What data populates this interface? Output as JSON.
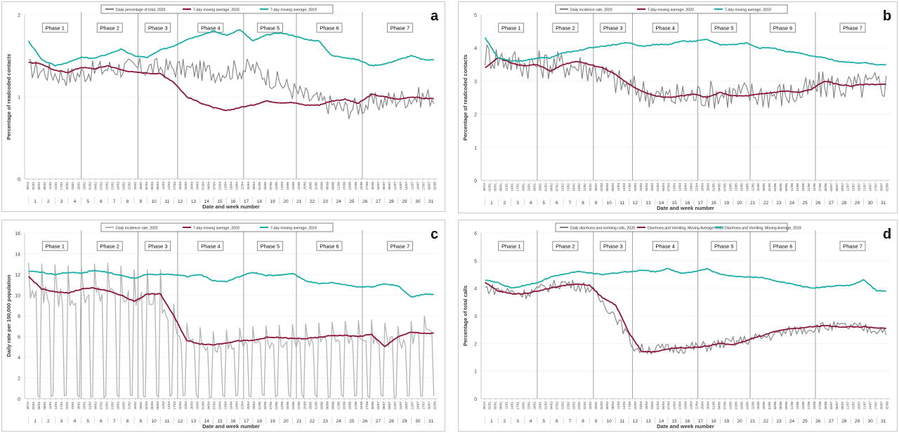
{
  "phases": [
    "Phase 1",
    "Phase 2",
    "Phase 3",
    "Phase 4",
    "Phase 5",
    "Phase 6",
    "Phase 7"
  ],
  "phase_week_bounds": [
    1,
    5,
    9.3,
    12.3,
    17.3,
    21.3,
    26.3,
    32
  ],
  "xlabel": "Date and week number",
  "week_numbers": [
    "1",
    "2",
    "3",
    "4",
    "5",
    "6",
    "7",
    "8",
    "9",
    "10",
    "11",
    "12",
    "13",
    "14",
    "15",
    "16",
    "17",
    "18",
    "19",
    "20",
    "21",
    "22",
    "23",
    "24",
    "25",
    "26",
    "27",
    "28",
    "29",
    "30",
    "31"
  ],
  "date_ticks": [
    "30/12",
    "02/01",
    "05/01",
    "08/01",
    "11/01",
    "14/01",
    "17/01",
    "20/01",
    "23/01",
    "26/01",
    "29/01",
    "01/02",
    "04/02",
    "07/02",
    "10/02",
    "13/02",
    "16/02",
    "19/02",
    "22/02",
    "25/02",
    "28/02",
    "02/03",
    "05/03",
    "08/03",
    "11/03",
    "14/03",
    "17/03",
    "20/03",
    "23/03",
    "26/03",
    "29/03",
    "01/04",
    "04/04",
    "07/04",
    "10/04",
    "13/04",
    "16/04",
    "19/04",
    "22/04",
    "25/04",
    "28/04",
    "01/05",
    "04/05",
    "07/05",
    "10/05",
    "13/05",
    "16/05",
    "19/05",
    "22/05",
    "25/05",
    "28/05",
    "31/05",
    "03/06",
    "06/06",
    "09/06",
    "12/06",
    "15/06",
    "18/06",
    "21/06",
    "24/06",
    "27/06",
    "30/06",
    "03/07",
    "06/07",
    "09/07",
    "12/07",
    "15/07",
    "18/07",
    "21/07",
    "24/07",
    "27/07",
    "30/07",
    "02/08"
  ],
  "colors": {
    "daily_a": "#808080",
    "daily_c": "#b4b4b4",
    "ma2020": "#8b1538",
    "ma2019": "#1aaea6"
  },
  "chart_data": [
    {
      "panel": "a",
      "type": "line",
      "ylabel": "Percentage of readcoded contacts",
      "ylim": [
        0,
        2
      ],
      "yticks": [
        "0",
        "1",
        "2"
      ],
      "legend": [
        "Daily percentage of total, 2020",
        "7-day moving average, 2020",
        "7-day moving average, 2019"
      ],
      "series": [
        {
          "name": "Daily percentage of total, 2020",
          "kind": "daily",
          "x": [
            1,
            4,
            7,
            9,
            12,
            15,
            18,
            22,
            25,
            27,
            29,
            31
          ],
          "y": [
            1.35,
            1.25,
            1.35,
            1.35,
            1.35,
            1.3,
            1.35,
            1.0,
            0.85,
            0.92,
            0.98,
            1.0
          ],
          "noise": 0.13
        },
        {
          "name": "7-day moving average, 2020",
          "kind": "ma2020",
          "x": [
            1,
            2,
            3,
            4,
            5,
            6,
            7,
            8,
            9,
            10,
            11,
            12,
            13,
            14,
            15,
            16,
            17,
            18,
            19,
            20,
            21,
            22,
            23,
            24,
            25,
            26,
            27,
            28,
            29,
            30,
            31
          ],
          "y": [
            1.42,
            1.4,
            1.32,
            1.3,
            1.36,
            1.34,
            1.38,
            1.33,
            1.3,
            1.29,
            1.28,
            1.18,
            1.0,
            0.93,
            0.87,
            0.83,
            0.87,
            0.9,
            0.95,
            0.93,
            0.93,
            0.9,
            0.9,
            0.95,
            0.97,
            0.92,
            1.03,
            1.0,
            0.97,
            1.0,
            0.98
          ]
        },
        {
          "name": "7-day moving average, 2019",
          "kind": "ma2019",
          "x": [
            1,
            2,
            3,
            4,
            5,
            6,
            7,
            8,
            9,
            10,
            11,
            12,
            13,
            14,
            15,
            16,
            17,
            18,
            19,
            20,
            21,
            22,
            23,
            24,
            25,
            26,
            27,
            28,
            29,
            30,
            31
          ],
          "y": [
            1.68,
            1.45,
            1.38,
            1.42,
            1.48,
            1.47,
            1.52,
            1.58,
            1.5,
            1.48,
            1.57,
            1.62,
            1.7,
            1.75,
            1.8,
            1.75,
            1.82,
            1.68,
            1.75,
            1.78,
            1.75,
            1.7,
            1.68,
            1.5,
            1.48,
            1.45,
            1.38,
            1.4,
            1.45,
            1.5,
            1.45
          ]
        }
      ]
    },
    {
      "panel": "b",
      "type": "line",
      "ylabel": "Percentage of readcoded contacts",
      "ylim": [
        0,
        5
      ],
      "yticks": [
        "0",
        "1",
        "2",
        "3",
        "4",
        "5"
      ],
      "legend": [
        "Daily incidence rate, 2020",
        "7-day moving average, 2020",
        "7-day moving average, 2019"
      ],
      "series": [
        {
          "name": "Daily incidence rate, 2020",
          "kind": "daily",
          "x": [
            1,
            4,
            7,
            9,
            12,
            15,
            18,
            22,
            25,
            27,
            29,
            31
          ],
          "y": [
            3.8,
            3.5,
            3.5,
            3.4,
            2.8,
            2.5,
            2.6,
            2.6,
            2.6,
            2.9,
            2.8,
            2.9
          ],
          "noise": 0.45
        },
        {
          "name": "7-day moving average, 2020",
          "kind": "ma2020",
          "x": [
            1,
            2,
            3,
            4,
            5,
            6,
            7,
            8,
            9,
            10,
            11,
            12,
            13,
            14,
            15,
            16,
            17,
            18,
            19,
            20,
            21,
            22,
            23,
            24,
            25,
            26,
            27,
            28,
            29,
            30,
            31
          ],
          "y": [
            3.4,
            3.7,
            3.55,
            3.45,
            3.5,
            3.3,
            3.5,
            3.6,
            3.5,
            3.4,
            3.2,
            2.9,
            2.7,
            2.55,
            2.5,
            2.55,
            2.6,
            2.5,
            2.65,
            2.55,
            2.55,
            2.6,
            2.65,
            2.7,
            2.65,
            2.75,
            3.0,
            2.9,
            2.85,
            2.9,
            2.9
          ]
        },
        {
          "name": "7-day moving average, 2019",
          "kind": "ma2019",
          "x": [
            1,
            2,
            3,
            4,
            5,
            6,
            7,
            8,
            9,
            10,
            11,
            12,
            13,
            14,
            15,
            16,
            17,
            18,
            19,
            20,
            21,
            22,
            23,
            24,
            25,
            26,
            27,
            28,
            29,
            30,
            31
          ],
          "y": [
            4.3,
            3.7,
            3.6,
            3.6,
            3.7,
            3.7,
            3.85,
            3.9,
            4.0,
            4.05,
            4.1,
            4.15,
            4.05,
            4.1,
            4.1,
            4.2,
            4.2,
            4.25,
            4.1,
            4.1,
            4.15,
            4.0,
            4.0,
            3.9,
            3.85,
            3.75,
            3.7,
            3.6,
            3.55,
            3.55,
            3.5
          ]
        }
      ]
    },
    {
      "panel": "c",
      "type": "line",
      "ylabel": "Daily rate per 100,000 population",
      "ylim": [
        0,
        16
      ],
      "yticks": [
        "0",
        "2",
        "4",
        "6",
        "8",
        "10",
        "12",
        "14",
        "16"
      ],
      "legend": [
        "Daily incidence rate, 2020",
        "7-day moving average, 2020",
        "7-day moving average, 2019"
      ],
      "series": [
        {
          "name": "Daily incidence rate, 2020",
          "kind": "daily-weekend",
          "x": [
            1,
            4,
            7,
            9,
            11,
            12.5,
            15,
            18,
            22,
            25,
            27,
            29,
            31
          ],
          "y": [
            10.5,
            10.3,
            10.5,
            10.0,
            10.0,
            6.0,
            5.2,
            5.6,
            5.8,
            6.0,
            6.1,
            5.6,
            6.4
          ]
        },
        {
          "name": "7-day moving average, 2020",
          "kind": "ma2020",
          "x": [
            1,
            2,
            3,
            4,
            5,
            6,
            7,
            8,
            9,
            10,
            11,
            12,
            13,
            14,
            15,
            16,
            17,
            18,
            19,
            20,
            21,
            22,
            23,
            24,
            25,
            26,
            27,
            28,
            29,
            30,
            31
          ],
          "y": [
            11.8,
            10.6,
            10.3,
            10.2,
            10.6,
            10.7,
            10.4,
            10.0,
            9.4,
            10.1,
            10.1,
            8.0,
            5.6,
            5.3,
            5.2,
            5.4,
            5.6,
            5.6,
            5.9,
            5.9,
            5.8,
            5.8,
            5.9,
            6.1,
            6.1,
            6.0,
            6.2,
            5.0,
            6.0,
            6.4,
            6.3
          ]
        },
        {
          "name": "7-day moving average, 2019",
          "kind": "ma2019",
          "x": [
            1,
            2,
            3,
            4,
            5,
            6,
            7,
            8,
            9,
            10,
            11,
            12,
            13,
            14,
            15,
            16,
            17,
            18,
            19,
            20,
            21,
            22,
            23,
            24,
            25,
            26,
            27,
            28,
            29,
            30,
            31
          ],
          "y": [
            12.3,
            12.2,
            12.0,
            12.2,
            12.1,
            12.4,
            12.2,
            11.9,
            11.6,
            12.0,
            12.0,
            12.0,
            11.8,
            12.0,
            11.4,
            11.3,
            11.8,
            12.2,
            11.9,
            11.9,
            12.1,
            11.4,
            11.1,
            11.2,
            11.0,
            10.8,
            10.8,
            11.1,
            10.9,
            9.8,
            10.1
          ]
        }
      ]
    },
    {
      "panel": "d",
      "type": "line",
      "ylabel": "Percentage of total calls",
      "ylim": [
        0,
        6
      ],
      "yticks": [
        "0",
        "1",
        "2",
        "3",
        "4",
        "5",
        "6"
      ],
      "legend": [
        "Daily diarrhoea and vomiting calls, 2020",
        "Diarrhoea and Vomiting, Moving Average, 2020",
        "Diarrhoea and Vomiting, Moving Average, 2019"
      ],
      "series": [
        {
          "name": "Daily diarrhoea and vomiting calls, 2020",
          "kind": "daily",
          "x": [
            1,
            4,
            7,
            9,
            11,
            12.5,
            15,
            18,
            22,
            25,
            27,
            29,
            31
          ],
          "y": [
            4.0,
            3.8,
            4.2,
            4.0,
            3.0,
            1.8,
            1.8,
            1.9,
            2.2,
            2.5,
            2.6,
            2.6,
            2.5
          ],
          "noise": 0.2
        },
        {
          "name": "Diarrhoea and Vomiting, Moving Average, 2020",
          "kind": "ma2020",
          "x": [
            1,
            2,
            3,
            4,
            5,
            6,
            7,
            8,
            9,
            10,
            11,
            12,
            13,
            14,
            15,
            16,
            17,
            18,
            19,
            20,
            21,
            22,
            23,
            24,
            25,
            26,
            27,
            28,
            29,
            30,
            31
          ],
          "y": [
            4.2,
            3.9,
            3.8,
            3.8,
            3.9,
            4.0,
            4.1,
            4.15,
            4.1,
            3.65,
            3.4,
            2.4,
            1.7,
            1.7,
            1.8,
            1.85,
            1.85,
            1.9,
            2.0,
            1.95,
            2.1,
            2.25,
            2.4,
            2.5,
            2.55,
            2.6,
            2.65,
            2.6,
            2.6,
            2.6,
            2.55
          ]
        },
        {
          "name": "Diarrhoea and Vomiting, Moving Average, 2019",
          "kind": "ma2019",
          "x": [
            1,
            2,
            3,
            4,
            5,
            6,
            7,
            8,
            9,
            10,
            11,
            12,
            13,
            14,
            15,
            16,
            17,
            18,
            19,
            20,
            21,
            22,
            23,
            24,
            25,
            26,
            27,
            28,
            29,
            30,
            31
          ],
          "y": [
            4.3,
            4.2,
            4.0,
            4.1,
            4.2,
            4.4,
            4.5,
            4.6,
            4.55,
            4.5,
            4.55,
            4.6,
            4.65,
            4.6,
            4.7,
            4.55,
            4.6,
            4.7,
            4.5,
            4.45,
            4.4,
            4.4,
            4.3,
            4.2,
            4.1,
            4.0,
            4.05,
            4.1,
            4.1,
            4.3,
            3.9
          ]
        }
      ]
    }
  ]
}
